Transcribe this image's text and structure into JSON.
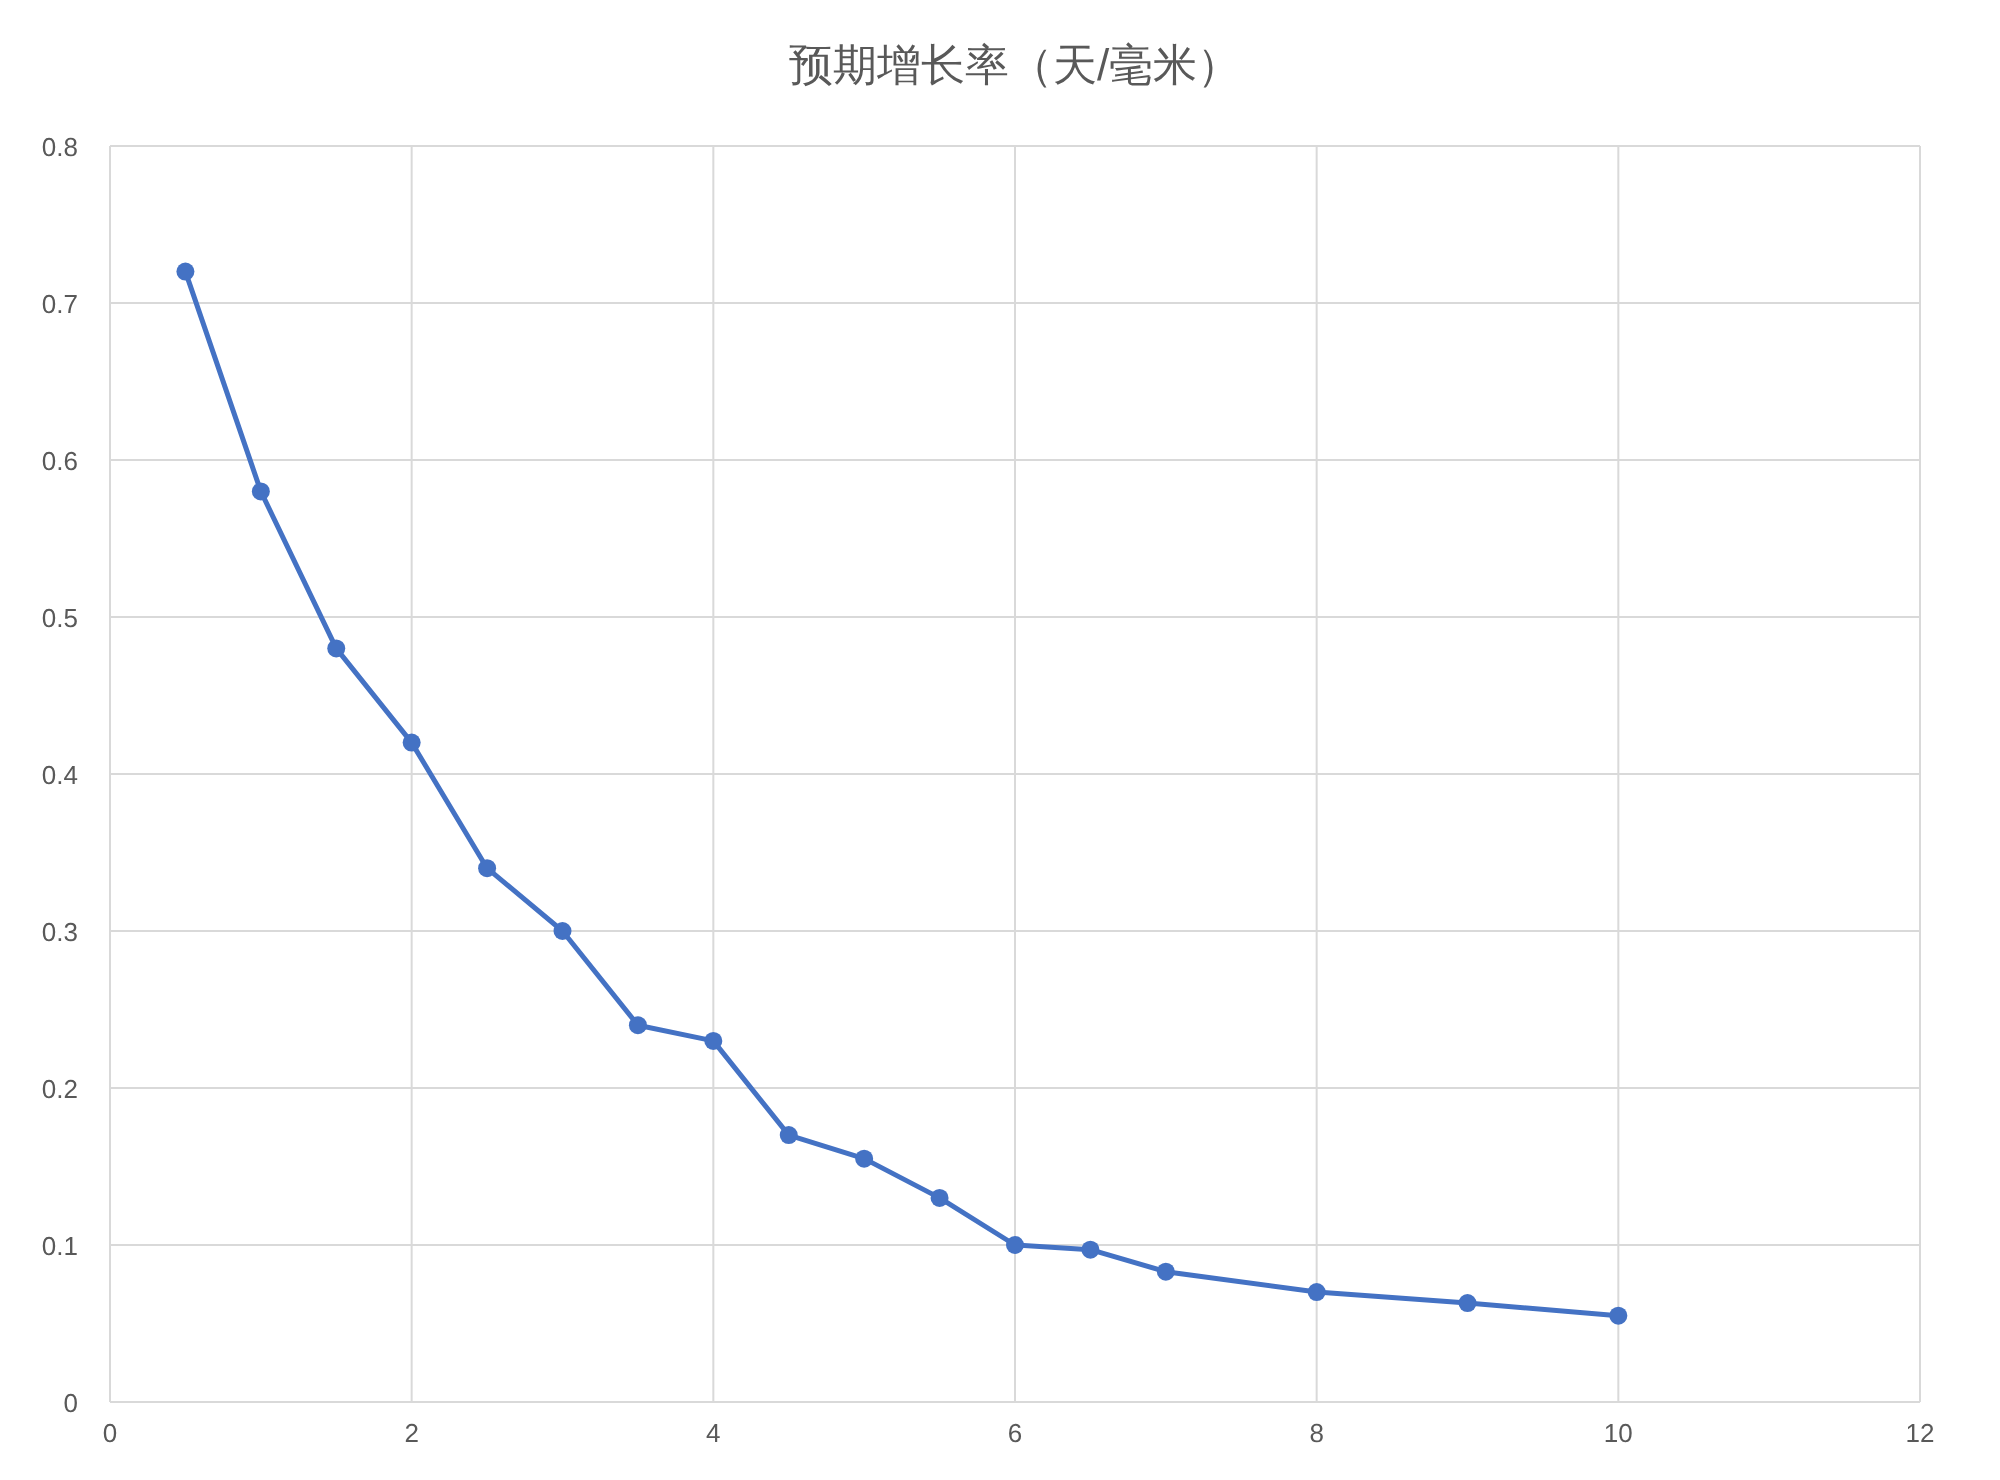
{
  "chart_data": {
    "type": "line",
    "title": "预期增长率（天/毫米）",
    "x": [
      0.5,
      1,
      1.5,
      2,
      2.5,
      3,
      3.5,
      4,
      4.5,
      5,
      5.5,
      6,
      6.5,
      7,
      8,
      9,
      10
    ],
    "series": [
      {
        "color": "#4472c4",
        "values": [
          0.72,
          0.58,
          0.48,
          0.42,
          0.34,
          0.3,
          0.24,
          0.23,
          0.17,
          0.155,
          0.13,
          0.1,
          0.097,
          0.083,
          0.07,
          0.063,
          0.055
        ]
      }
    ],
    "xlim": [
      0,
      12
    ],
    "xticks": [
      0,
      2,
      4,
      6,
      8,
      10,
      12
    ],
    "ylim": [
      0,
      0.8
    ],
    "yticks": [
      0,
      0.1,
      0.2,
      0.3,
      0.4,
      0.5,
      0.6,
      0.7,
      0.8
    ],
    "grid": true,
    "marker": "circle",
    "line_style": "solid"
  }
}
